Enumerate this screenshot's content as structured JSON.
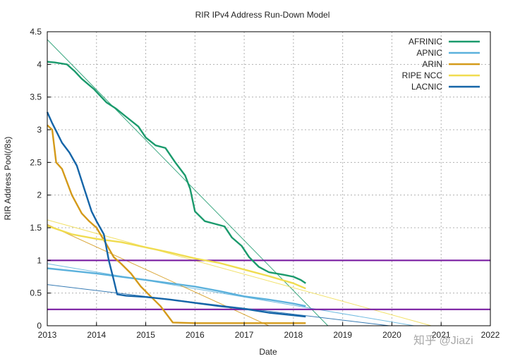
{
  "chart_data": {
    "type": "line",
    "title": "RIR IPv4 Address Run-Down Model",
    "xlabel": "Date",
    "ylabel": "RIR Address Pool(/8s)",
    "xlim": [
      2013,
      2022
    ],
    "ylim": [
      0,
      4.5
    ],
    "x_ticks": [
      "2013",
      "2014",
      "2015",
      "2016",
      "2017",
      "2018",
      "2019",
      "2020",
      "2021",
      "2022"
    ],
    "y_ticks": [
      "0",
      "0.5",
      "1",
      "1.5",
      "2",
      "2.5",
      "3",
      "3.5",
      "4",
      "4.5"
    ],
    "grid": "dotted",
    "legend_position": "top-right",
    "series": [
      {
        "name": "AFRINIC",
        "color": "#1a9a6c",
        "points": [
          [
            2013.0,
            4.04
          ],
          [
            2013.15,
            4.03
          ],
          [
            2013.4,
            4.0
          ],
          [
            2013.55,
            3.9
          ],
          [
            2013.7,
            3.78
          ],
          [
            2013.95,
            3.62
          ],
          [
            2014.2,
            3.42
          ],
          [
            2014.4,
            3.32
          ],
          [
            2014.6,
            3.2
          ],
          [
            2014.85,
            3.05
          ],
          [
            2015.0,
            2.88
          ],
          [
            2015.2,
            2.76
          ],
          [
            2015.4,
            2.72
          ],
          [
            2015.6,
            2.5
          ],
          [
            2015.8,
            2.3
          ],
          [
            2015.9,
            2.1
          ],
          [
            2016.0,
            1.75
          ],
          [
            2016.2,
            1.6
          ],
          [
            2016.4,
            1.56
          ],
          [
            2016.6,
            1.52
          ],
          [
            2016.75,
            1.35
          ],
          [
            2016.95,
            1.22
          ],
          [
            2017.1,
            1.05
          ],
          [
            2017.3,
            0.9
          ],
          [
            2017.5,
            0.82
          ],
          [
            2017.8,
            0.78
          ],
          [
            2018.0,
            0.75
          ],
          [
            2018.15,
            0.7
          ],
          [
            2018.25,
            0.65
          ]
        ]
      },
      {
        "name": "APNIC",
        "color": "#5bb1dc",
        "points": [
          [
            2013.0,
            0.88
          ],
          [
            2013.5,
            0.84
          ],
          [
            2014.0,
            0.8
          ],
          [
            2014.5,
            0.75
          ],
          [
            2015.0,
            0.7
          ],
          [
            2015.5,
            0.65
          ],
          [
            2016.0,
            0.6
          ],
          [
            2016.5,
            0.53
          ],
          [
            2017.0,
            0.45
          ],
          [
            2017.5,
            0.4
          ],
          [
            2018.0,
            0.34
          ],
          [
            2018.25,
            0.3
          ]
        ]
      },
      {
        "name": "ARIN",
        "color": "#d49a1a",
        "points": [
          [
            2013.0,
            3.07
          ],
          [
            2013.1,
            3.0
          ],
          [
            2013.18,
            2.5
          ],
          [
            2013.3,
            2.4
          ],
          [
            2013.5,
            2.0
          ],
          [
            2013.7,
            1.72
          ],
          [
            2013.85,
            1.6
          ],
          [
            2014.0,
            1.5
          ],
          [
            2014.2,
            1.25
          ],
          [
            2014.35,
            1.05
          ],
          [
            2014.5,
            0.95
          ],
          [
            2014.7,
            0.8
          ],
          [
            2014.9,
            0.6
          ],
          [
            2015.1,
            0.45
          ],
          [
            2015.3,
            0.3
          ],
          [
            2015.45,
            0.15
          ],
          [
            2015.55,
            0.05
          ],
          [
            2016.0,
            0.04
          ],
          [
            2017.0,
            0.04
          ],
          [
            2018.0,
            0.04
          ],
          [
            2018.25,
            0.04
          ]
        ]
      },
      {
        "name": "RIPE NCC",
        "color": "#f0dc50",
        "points": [
          [
            2013.0,
            1.53
          ],
          [
            2013.5,
            1.4
          ],
          [
            2014.0,
            1.33
          ],
          [
            2014.5,
            1.28
          ],
          [
            2015.0,
            1.2
          ],
          [
            2015.5,
            1.12
          ],
          [
            2016.0,
            1.03
          ],
          [
            2016.5,
            0.96
          ],
          [
            2017.0,
            0.86
          ],
          [
            2017.5,
            0.76
          ],
          [
            2018.0,
            0.65
          ],
          [
            2018.25,
            0.57
          ]
        ]
      },
      {
        "name": "LACNIC",
        "color": "#1565a8",
        "points": [
          [
            2013.0,
            3.27
          ],
          [
            2013.1,
            3.1
          ],
          [
            2013.2,
            2.95
          ],
          [
            2013.3,
            2.8
          ],
          [
            2013.45,
            2.65
          ],
          [
            2013.6,
            2.45
          ],
          [
            2013.75,
            2.1
          ],
          [
            2013.9,
            1.75
          ],
          [
            2014.0,
            1.6
          ],
          [
            2014.15,
            1.4
          ],
          [
            2014.25,
            1.0
          ],
          [
            2014.35,
            0.7
          ],
          [
            2014.42,
            0.48
          ],
          [
            2014.6,
            0.46
          ],
          [
            2015.0,
            0.44
          ],
          [
            2015.5,
            0.4
          ],
          [
            2016.0,
            0.35
          ],
          [
            2016.5,
            0.3
          ],
          [
            2017.0,
            0.26
          ],
          [
            2017.5,
            0.2
          ],
          [
            2018.0,
            0.16
          ],
          [
            2018.25,
            0.14
          ]
        ]
      }
    ],
    "trend_lines": [
      {
        "series": "AFRINIC",
        "color": "#1a9a6c",
        "from": [
          2013.0,
          4.38
        ],
        "to": [
          2018.7,
          0.0
        ]
      },
      {
        "series": "APNIC",
        "color": "#5bb1dc",
        "from": [
          2013.0,
          0.95
        ],
        "to": [
          2020.45,
          0.0
        ]
      },
      {
        "series": "ARIN",
        "color": "#d49a1a",
        "from": [
          2013.0,
          1.55
        ],
        "to": [
          2017.5,
          0.0
        ]
      },
      {
        "series": "RIPE NCC",
        "color": "#f0dc50",
        "from": [
          2013.0,
          1.62
        ],
        "to": [
          2020.8,
          0.0
        ]
      },
      {
        "series": "LACNIC",
        "color": "#1565a8",
        "from": [
          2013.0,
          0.63
        ],
        "to": [
          2019.95,
          0.0
        ]
      }
    ],
    "thresholds": [
      {
        "y": 1.0,
        "color": "#7a1fa2"
      },
      {
        "y": 0.25,
        "color": "#7a1fa2"
      }
    ]
  },
  "watermark": "知乎 @Jiazi"
}
